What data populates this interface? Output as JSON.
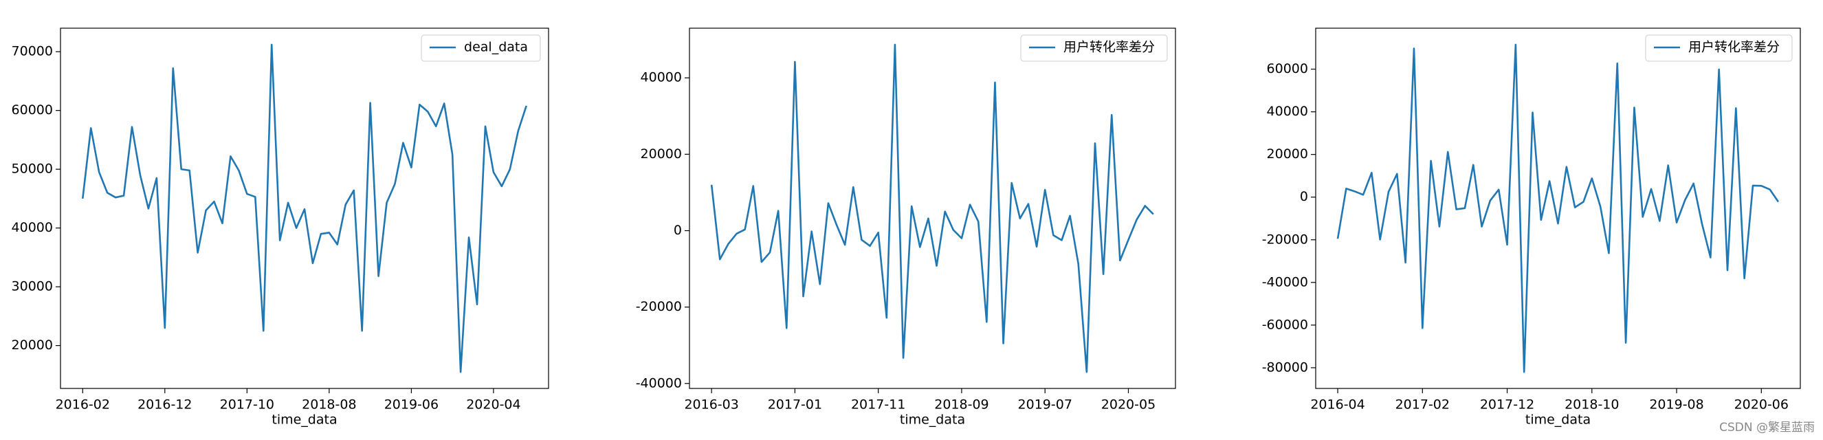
{
  "chart_data": [
    {
      "type": "line",
      "xlabel": "time_data",
      "x": [
        "2016-02",
        "2016-03",
        "2016-04",
        "2016-05",
        "2016-06",
        "2016-07",
        "2016-08",
        "2016-09",
        "2016-10",
        "2016-11",
        "2016-12",
        "2017-01",
        "2017-02",
        "2017-03",
        "2017-04",
        "2017-05",
        "2017-06",
        "2017-07",
        "2017-08",
        "2017-09",
        "2017-10",
        "2017-11",
        "2017-12",
        "2018-01",
        "2018-02",
        "2018-03",
        "2018-04",
        "2018-05",
        "2018-06",
        "2018-07",
        "2018-08",
        "2018-09",
        "2018-10",
        "2018-11",
        "2018-12",
        "2019-01",
        "2019-02",
        "2019-03",
        "2019-04",
        "2019-05",
        "2019-06",
        "2019-07",
        "2019-08",
        "2019-09",
        "2019-10",
        "2019-11",
        "2019-12",
        "2020-01",
        "2020-02",
        "2020-03",
        "2020-04",
        "2020-05",
        "2020-06",
        "2020-07",
        "2020-08"
      ],
      "series": [
        {
          "name": "deal_data",
          "color": "#1f77b4",
          "values": [
            45000,
            57000,
            49500,
            46000,
            45200,
            45500,
            57200,
            49000,
            43300,
            48500,
            23000,
            67200,
            50000,
            49800,
            35800,
            43000,
            44500,
            40800,
            52200,
            49800,
            45800,
            45300,
            22500,
            71200,
            37900,
            44300,
            40000,
            43200,
            34000,
            39000,
            39200,
            37200,
            44000,
            46400,
            22500,
            61300,
            31800,
            44300,
            47500,
            54500,
            50300,
            61000,
            59800,
            57300,
            61200,
            52500,
            15500,
            38400,
            27000,
            57300,
            49500,
            47100,
            50000,
            56500,
            60800
          ]
        }
      ],
      "ylim": [
        12700,
        74000
      ],
      "yticks": [
        20000,
        30000,
        40000,
        50000,
        60000,
        70000
      ],
      "xticks": [
        "2016-02",
        "2016-12",
        "2017-10",
        "2018-08",
        "2019-06",
        "2020-04"
      ],
      "legend": "upper right"
    },
    {
      "type": "line",
      "xlabel": "time_data",
      "x": [
        "2016-03",
        "2016-04",
        "2016-05",
        "2016-06",
        "2016-07",
        "2016-08",
        "2016-09",
        "2016-10",
        "2016-11",
        "2016-12",
        "2017-01",
        "2017-02",
        "2017-03",
        "2017-04",
        "2017-05",
        "2017-06",
        "2017-07",
        "2017-08",
        "2017-09",
        "2017-10",
        "2017-11",
        "2017-12",
        "2018-01",
        "2018-02",
        "2018-03",
        "2018-04",
        "2018-05",
        "2018-06",
        "2018-07",
        "2018-08",
        "2018-09",
        "2018-10",
        "2018-11",
        "2018-12",
        "2019-01",
        "2019-02",
        "2019-03",
        "2019-04",
        "2019-05",
        "2019-06",
        "2019-07",
        "2019-08",
        "2019-09",
        "2019-10",
        "2019-11",
        "2019-12",
        "2020-01",
        "2020-02",
        "2020-03",
        "2020-04",
        "2020-05",
        "2020-06",
        "2020-07",
        "2020-08"
      ],
      "series": [
        {
          "name": "用户转化率差分",
          "color": "#1f77b4",
          "values": [
            12000,
            -7500,
            -3500,
            -800,
            300,
            11700,
            -8200,
            -5700,
            5200,
            -25500,
            44200,
            -17200,
            -200,
            -14000,
            7200,
            1500,
            -3700,
            11400,
            -2400,
            -4000,
            -500,
            -22800,
            48700,
            -33300,
            6400,
            -4300,
            3200,
            -9200,
            5000,
            200,
            -2000,
            6800,
            2400,
            -23900,
            38800,
            -29500,
            12500,
            3200,
            7000,
            -4200,
            10700,
            -1200,
            -2500,
            3900,
            -8700,
            -37000,
            22900,
            -11400,
            30300,
            -7800,
            -2400,
            2900,
            6500,
            4300
          ]
        }
      ],
      "ylim": [
        -41300,
        53000
      ],
      "yticks": [
        -40000,
        -20000,
        0,
        20000,
        40000
      ],
      "xticks": [
        "2016-03",
        "2017-01",
        "2017-11",
        "2018-09",
        "2019-07",
        "2020-05"
      ],
      "legend": "upper right"
    },
    {
      "type": "line",
      "xlabel": "time_data",
      "x": [
        "2016-04",
        "2016-05",
        "2016-06",
        "2016-07",
        "2016-08",
        "2016-09",
        "2016-10",
        "2016-11",
        "2016-12",
        "2017-01",
        "2017-02",
        "2017-03",
        "2017-04",
        "2017-05",
        "2017-06",
        "2017-07",
        "2017-08",
        "2017-09",
        "2017-10",
        "2017-11",
        "2017-12",
        "2018-01",
        "2018-02",
        "2018-03",
        "2018-04",
        "2018-05",
        "2018-06",
        "2018-07",
        "2018-08",
        "2018-09",
        "2018-10",
        "2018-11",
        "2018-12",
        "2019-01",
        "2019-02",
        "2019-03",
        "2019-04",
        "2019-05",
        "2019-06",
        "2019-07",
        "2019-08",
        "2019-09",
        "2019-10",
        "2019-11",
        "2019-12",
        "2020-01",
        "2020-02",
        "2020-03",
        "2020-04",
        "2020-05",
        "2020-06",
        "2020-07",
        "2020-08"
      ],
      "series": [
        {
          "name": "用户转化率差分",
          "color": "#1f77b4",
          "values": [
            -19500,
            4000,
            2700,
            1100,
            11400,
            -19900,
            2500,
            10900,
            -30700,
            69700,
            -61400,
            17000,
            -13800,
            21200,
            -5700,
            -5200,
            15100,
            -13800,
            -1600,
            3500,
            -22300,
            71500,
            -82000,
            39700,
            -10700,
            7500,
            -12400,
            14200,
            -4800,
            -2200,
            8800,
            -4400,
            -26300,
            62700,
            -68300,
            42000,
            -9300,
            3800,
            -11200,
            14900,
            -11900,
            -1300,
            6400,
            -12600,
            -28300,
            59900,
            -34300,
            41700,
            -38100,
            5400,
            5300,
            3600,
            -2200
          ]
        }
      ],
      "ylim": [
        -89700,
        79200
      ],
      "yticks": [
        -80000,
        -60000,
        -40000,
        -20000,
        0,
        20000,
        40000,
        60000
      ],
      "xticks": [
        "2016-04",
        "2017-02",
        "2017-12",
        "2018-10",
        "2019-08",
        "2020-06"
      ],
      "legend": "upper right"
    }
  ],
  "watermark": "CSDN @繁星蓝雨"
}
